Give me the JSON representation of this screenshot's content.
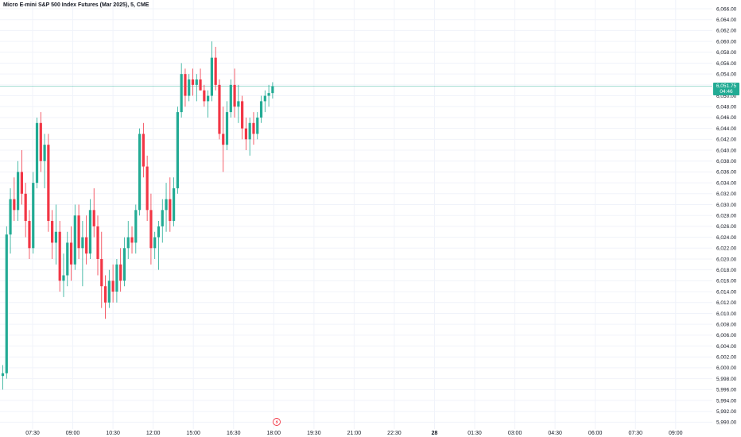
{
  "header": {
    "title": "Micro E-mini S&P 500 Index Futures (Mar 2025), 5, CME"
  },
  "last_price": {
    "value": "6,051.75",
    "countdown": "04:46"
  },
  "colors": {
    "up": "#22ab94",
    "down": "#f23645",
    "price_line": "#22ab94",
    "grid": "#f0f3fa",
    "text": "#131722",
    "event_marker": "#f23645"
  },
  "icons": [
    "lightning-icon"
  ],
  "chart_data": {
    "type": "candlestick",
    "title": "Micro E-mini S&P 500 Index Futures (Mar 2025), 5, CME",
    "interval": "5",
    "ylim": [
      5990,
      6066
    ],
    "y_ticks": [
      "6,066.00",
      "6,064.00",
      "6,062.00",
      "6,060.00",
      "6,058.00",
      "6,056.00",
      "6,054.00",
      "6,052.00",
      "6,050.00",
      "6,048.00",
      "6,046.00",
      "6,044.00",
      "6,042.00",
      "6,040.00",
      "6,038.00",
      "6,036.00",
      "6,034.00",
      "6,032.00",
      "6,030.00",
      "6,028.00",
      "6,026.00",
      "6,024.00",
      "6,022.00",
      "6,020.00",
      "6,018.00",
      "6,016.00",
      "6,014.00",
      "6,012.00",
      "6,010.00",
      "6,008.00",
      "6,006.00",
      "6,004.00",
      "6,002.00",
      "6,000.00",
      "5,998.00",
      "5,996.00",
      "5,994.00",
      "5,992.00",
      "5,990.00"
    ],
    "x_ticks": [
      {
        "label": "07:30",
        "bold": false
      },
      {
        "label": "09:00",
        "bold": false
      },
      {
        "label": "10:30",
        "bold": false
      },
      {
        "label": "12:00",
        "bold": false
      },
      {
        "label": "15:00",
        "bold": false
      },
      {
        "label": "16:30",
        "bold": false
      },
      {
        "label": "18:00",
        "bold": false
      },
      {
        "label": "19:30",
        "bold": false
      },
      {
        "label": "21:00",
        "bold": false
      },
      {
        "label": "22:30",
        "bold": false
      },
      {
        "label": "28",
        "bold": true
      },
      {
        "label": "01:30",
        "bold": false
      },
      {
        "label": "03:00",
        "bold": false
      },
      {
        "label": "04:30",
        "bold": false
      },
      {
        "label": "06:00",
        "bold": false
      },
      {
        "label": "07:30",
        "bold": false
      },
      {
        "label": "09:00",
        "bold": false
      }
    ],
    "last_price": 6051.75,
    "grid": true,
    "candles": [
      [
        5998.5,
        6000.5,
        5996,
        5999
      ],
      [
        5999,
        6026,
        5998,
        6024.5
      ],
      [
        6024.5,
        6033,
        6021,
        6031
      ],
      [
        6031,
        6035,
        6027,
        6029
      ],
      [
        6029,
        6038,
        6027,
        6036
      ],
      [
        6036,
        6040,
        6030,
        6032
      ],
      [
        6032,
        6034,
        6024,
        6027
      ],
      [
        6027,
        6029,
        6020,
        6022
      ],
      [
        6022,
        6036,
        6021,
        6034
      ],
      [
        6034,
        6046,
        6033,
        6045
      ],
      [
        6045,
        6047,
        6036,
        6038
      ],
      [
        6038,
        6043,
        6033,
        6041
      ],
      [
        6041,
        6043,
        6025,
        6027
      ],
      [
        6027,
        6029,
        6020,
        6023
      ],
      [
        6023,
        6030,
        6019,
        6025
      ],
      [
        6025,
        6027,
        6014,
        6016
      ],
      [
        6016,
        6021,
        6013,
        6017
      ],
      [
        6017,
        6025,
        6015,
        6023
      ],
      [
        6023,
        6026,
        6016,
        6019
      ],
      [
        6019,
        6030,
        6018,
        6028
      ],
      [
        6028,
        6030,
        6020,
        6022
      ],
      [
        6022,
        6027,
        6015,
        6024
      ],
      [
        6024,
        6028,
        6019,
        6021
      ],
      [
        6021,
        6031,
        6020,
        6029
      ],
      [
        6029,
        6033,
        6024,
        6026
      ],
      [
        6026,
        6028,
        6017,
        6020
      ],
      [
        6020,
        6025,
        6011,
        6015
      ],
      [
        6015,
        6017,
        6009,
        6012
      ],
      [
        6012,
        6018,
        6011,
        6016
      ],
      [
        6016,
        6019,
        6012,
        6014
      ],
      [
        6014,
        6020,
        6012,
        6019
      ],
      [
        6019,
        6022,
        6014,
        6016
      ],
      [
        6016,
        6024,
        6015,
        6022
      ],
      [
        6022,
        6027,
        6020,
        6024
      ],
      [
        6024,
        6026,
        6021,
        6023
      ],
      [
        6023,
        6030,
        6021,
        6029
      ],
      [
        6029,
        6044,
        6028,
        6043
      ],
      [
        6043,
        6045,
        6035,
        6037
      ],
      [
        6037,
        6039,
        6027,
        6029
      ],
      [
        6029,
        6032,
        6019,
        6022
      ],
      [
        6022,
        6025,
        6020,
        6024
      ],
      [
        6024,
        6027,
        6018,
        6026
      ],
      [
        6026,
        6031,
        6023,
        6029
      ],
      [
        6029,
        6034,
        6025,
        6031
      ],
      [
        6031,
        6035,
        6025,
        6027
      ],
      [
        6027,
        6035,
        6026,
        6033
      ],
      [
        6033,
        6048,
        6032,
        6047
      ],
      [
        6047,
        6056,
        6046,
        6054
      ],
      [
        6054,
        6055,
        6048,
        6050
      ],
      [
        6050,
        6054,
        6049,
        6053
      ],
      [
        6053,
        6055,
        6050,
        6052
      ],
      [
        6052,
        6054,
        6049,
        6053
      ],
      [
        6053,
        6055,
        6051,
        6051
      ],
      [
        6051,
        6052,
        6048,
        6049
      ],
      [
        6049,
        6051,
        6046,
        6050
      ],
      [
        6050,
        6060,
        6049,
        6057
      ],
      [
        6057,
        6059,
        6051,
        6052
      ],
      [
        6052,
        6053,
        6042,
        6043
      ],
      [
        6043,
        6048,
        6036,
        6041
      ],
      [
        6041,
        6049,
        6040,
        6047
      ],
      [
        6047,
        6053,
        6046,
        6052
      ],
      [
        6052,
        6055,
        6046,
        6048
      ],
      [
        6048,
        6052,
        6045,
        6049
      ],
      [
        6049,
        6050,
        6042,
        6044
      ],
      [
        6044,
        6046,
        6040,
        6042
      ],
      [
        6042,
        6046,
        6039,
        6045
      ],
      [
        6045,
        6047,
        6041,
        6043
      ],
      [
        6043,
        6047,
        6042,
        6046
      ],
      [
        6046,
        6050,
        6045,
        6049
      ],
      [
        6049,
        6051,
        6047,
        6050
      ],
      [
        6050,
        6052,
        6048,
        6050.5
      ],
      [
        6050.5,
        6052.5,
        6049.5,
        6051.75
      ]
    ]
  }
}
